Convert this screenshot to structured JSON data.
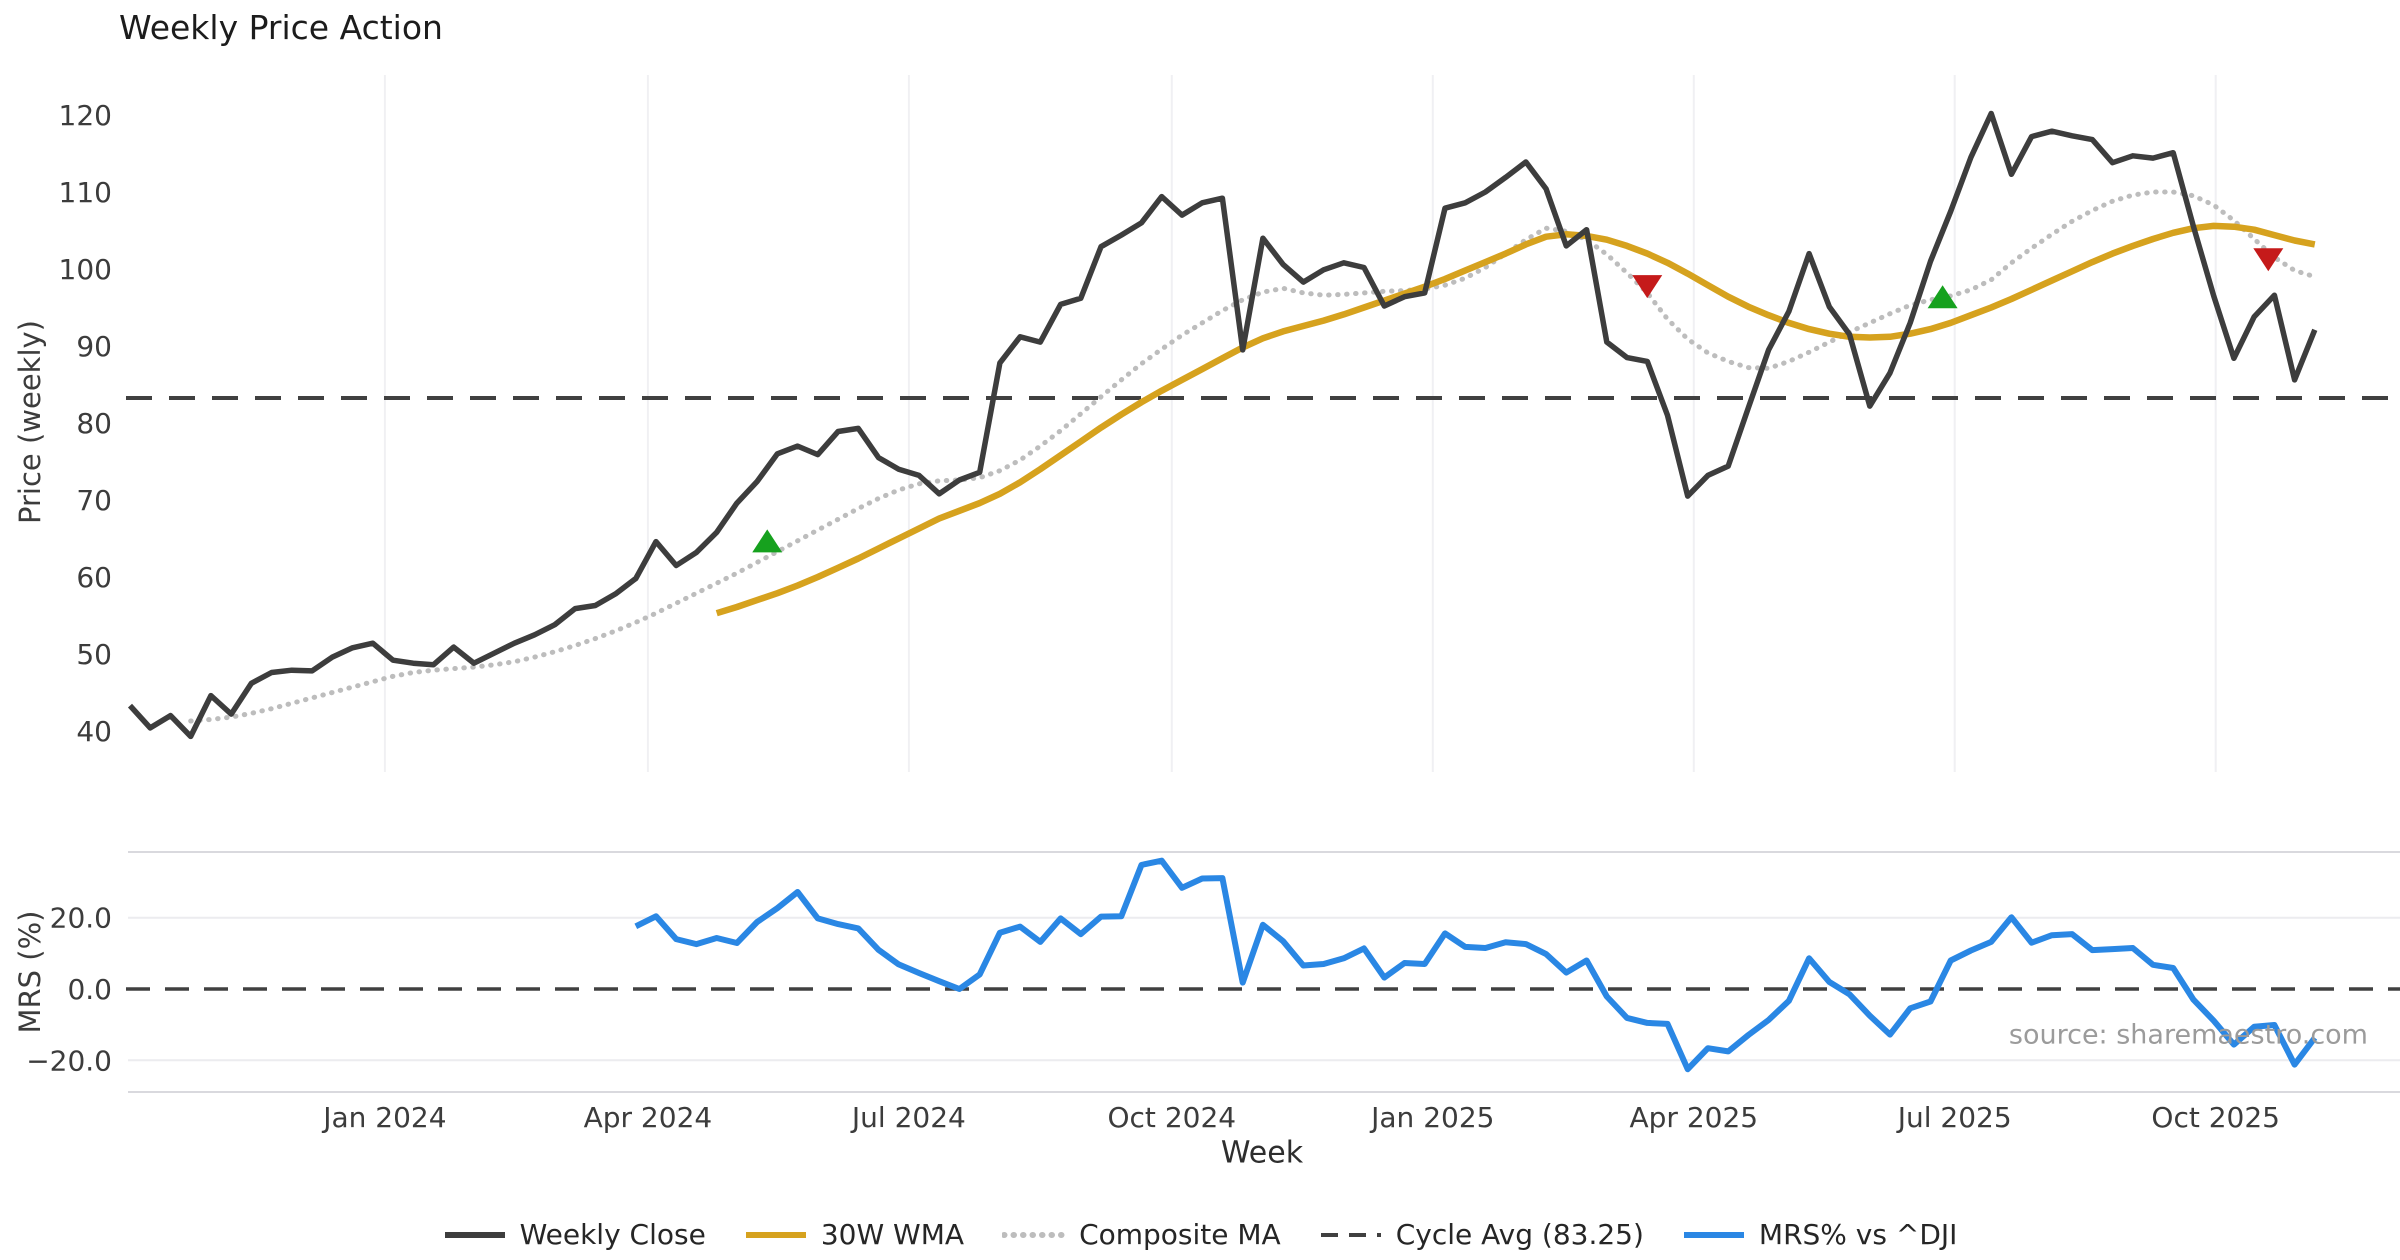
{
  "title": "Weekly Price Action",
  "axes": {
    "price_label": "Price (weekly)",
    "mrs_label": "MRS (%)",
    "x_label": "Week"
  },
  "watermark": "source: sharemaestro.com",
  "colors": {
    "close": "#3d3d3d",
    "wma": "#d6a21e",
    "composite": "#bdbdbd",
    "dashed": "#404040",
    "mrs": "#2a87e4",
    "buy": "#16a11e",
    "sell": "#c51a1a",
    "grid": "#f0f0f3",
    "grid2": "#ececef",
    "spine": "#d9d9de",
    "tick": "#3c3c3c"
  },
  "legend": [
    {
      "label": "Weekly Close",
      "color": "#3d3d3d",
      "style": "solid"
    },
    {
      "label": "30W WMA",
      "color": "#d6a21e",
      "style": "solid"
    },
    {
      "label": "Composite MA",
      "color": "#bdbdbd",
      "style": "dotted"
    },
    {
      "label": "Cycle Avg (83.25)",
      "color": "#404040",
      "style": "dashed"
    },
    {
      "label": "MRS% vs ^DJI",
      "color": "#2a87e4",
      "style": "solid"
    }
  ],
  "chart_data": {
    "type": "line",
    "x_unit": "week_index_from_2023-10",
    "x_ticks": [
      {
        "label": "Jan 2024",
        "week": 12.6
      },
      {
        "label": "Apr 2024",
        "week": 25.6
      },
      {
        "label": "Jul 2024",
        "week": 38.5
      },
      {
        "label": "Oct 2024",
        "week": 51.5
      },
      {
        "label": "Jan 2025",
        "week": 64.4
      },
      {
        "label": "Apr 2025",
        "week": 77.3
      },
      {
        "label": "Jul 2025",
        "week": 90.2
      },
      {
        "label": "Oct 2025",
        "week": 103.1
      }
    ],
    "price_panel": {
      "ylim": [
        34.8,
        125.2
      ],
      "yticks": [
        120,
        110,
        100,
        90,
        80,
        70,
        60,
        50,
        40
      ],
      "cycle_avg": 83.25,
      "series": [
        {
          "name": "Composite MA",
          "style": "dotted",
          "color": "#bdbdbd",
          "width": 5,
          "start_week": 3,
          "values": [
            41.3,
            41.5,
            41.8,
            42.3,
            42.9,
            43.6,
            44.3,
            45.0,
            45.7,
            46.4,
            47.1,
            47.6,
            47.9,
            48.1,
            48.3,
            48.6,
            49.0,
            49.6,
            50.3,
            51.1,
            52.0,
            53.0,
            54.1,
            55.3,
            56.6,
            57.9,
            59.2,
            60.5,
            61.9,
            63.3,
            64.7,
            66.1,
            67.5,
            68.9,
            70.2,
            71.3,
            72.1,
            72.5,
            72.6,
            72.9,
            73.8,
            75.2,
            77.0,
            79.0,
            81.2,
            83.4,
            85.6,
            87.7,
            89.6,
            91.4,
            93.0,
            94.6,
            96.0,
            97.0,
            97.5,
            96.9,
            96.6,
            96.7,
            96.9,
            97.1,
            97.2,
            97.4,
            97.9,
            98.8,
            100.2,
            102.0,
            103.8,
            105.3,
            104.9,
            103.8,
            101.9,
            99.5,
            96.9,
            93.5,
            90.9,
            89.1,
            88.0,
            87.2,
            87.1,
            88.0,
            89.2,
            90.5,
            91.8,
            93.0,
            94.2,
            95.3,
            96.0,
            96.5,
            97.3,
            98.6,
            100.8,
            102.7,
            104.5,
            106.2,
            107.6,
            108.8,
            109.6,
            110.0,
            110.0,
            109.5,
            108.3,
            106.3,
            103.9,
            101.5,
            99.8,
            99.0
          ]
        },
        {
          "name": "30W WMA",
          "style": "solid",
          "color": "#d6a21e",
          "width": 6.5,
          "start_week": 29,
          "values": [
            55.3,
            56.1,
            57.0,
            57.9,
            58.9,
            60.0,
            61.2,
            62.4,
            63.7,
            65.0,
            66.3,
            67.6,
            68.6,
            69.6,
            70.8,
            72.3,
            74.0,
            75.8,
            77.6,
            79.4,
            81.1,
            82.7,
            84.2,
            85.6,
            87.0,
            88.4,
            89.8,
            91.0,
            91.9,
            92.6,
            93.3,
            94.1,
            95.0,
            95.9,
            96.8,
            97.7,
            98.7,
            99.8,
            100.9,
            102.0,
            103.2,
            104.2,
            104.5,
            104.3,
            103.8,
            103.0,
            102.0,
            100.8,
            99.4,
            97.9,
            96.4,
            95.1,
            94.0,
            93.0,
            92.2,
            91.6,
            91.2,
            91.1,
            91.2,
            91.6,
            92.2,
            93.0,
            94.0,
            95.0,
            96.1,
            97.3,
            98.5,
            99.7,
            100.9,
            102.0,
            103.0,
            103.9,
            104.7,
            105.3,
            105.6,
            105.5,
            105.1,
            104.4,
            103.7,
            103.2
          ]
        },
        {
          "name": "Weekly Close",
          "style": "solid",
          "color": "#3d3d3d",
          "width": 5.5,
          "start_week": 0,
          "values": [
            43.3,
            40.4,
            42.0,
            39.3,
            44.6,
            42.2,
            46.2,
            47.6,
            47.9,
            47.8,
            49.6,
            50.8,
            51.4,
            49.2,
            48.8,
            48.6,
            50.9,
            48.8,
            50.1,
            51.4,
            52.5,
            53.8,
            55.9,
            56.3,
            57.8,
            59.8,
            64.6,
            61.5,
            63.2,
            65.8,
            69.6,
            72.4,
            76.0,
            77.0,
            75.9,
            78.9,
            79.3,
            75.5,
            74.0,
            73.2,
            70.8,
            72.6,
            73.6,
            87.8,
            91.2,
            90.5,
            95.4,
            96.2,
            102.9,
            104.4,
            106.0,
            109.4,
            107.0,
            108.6,
            109.2,
            89.5,
            104.0,
            100.6,
            98.3,
            99.9,
            100.8,
            100.2,
            95.2,
            96.4,
            96.9,
            107.9,
            108.6,
            110.0,
            111.9,
            113.9,
            110.4,
            103.0,
            105.1,
            90.5,
            88.5,
            88.0,
            81.0,
            70.5,
            73.2,
            74.4,
            82.0,
            89.5,
            94.5,
            102.0,
            95.1,
            91.5,
            82.2,
            86.5,
            93.0,
            101.0,
            107.5,
            114.5,
            120.2,
            112.3,
            117.2,
            117.9,
            117.3,
            116.8,
            113.8,
            114.7,
            114.4,
            115.1,
            105.5,
            96.5,
            88.4,
            93.8,
            96.6,
            85.6,
            92.1
          ]
        }
      ],
      "markers": [
        {
          "type": "buy",
          "week": 31.5,
          "value": 64.5
        },
        {
          "type": "sell",
          "week": 75.0,
          "value": 97.9
        },
        {
          "type": "buy",
          "week": 89.6,
          "value": 96.2
        },
        {
          "type": "sell",
          "week": 105.7,
          "value": 101.4
        }
      ]
    },
    "mrs_panel": {
      "ylim": [
        -28.9,
        38.4
      ],
      "yticks": [
        {
          "label": "20.0",
          "value": 20
        },
        {
          "label": "0.0",
          "value": 0
        },
        {
          "label": "−20.0",
          "value": -20
        }
      ],
      "zero_line": 0,
      "series": [
        {
          "name": "MRS% vs ^DJI",
          "style": "solid",
          "color": "#2a87e4",
          "width": 6,
          "start_week": 25,
          "values": [
            17.6,
            20.4,
            14.0,
            12.6,
            14.3,
            12.9,
            18.8,
            22.7,
            27.2,
            19.8,
            18.2,
            17.0,
            11.0,
            6.9,
            4.5,
            2.2,
            0.0,
            4.1,
            15.8,
            17.5,
            13.2,
            19.8,
            15.4,
            20.3,
            20.4,
            34.8,
            36.0,
            28.4,
            31.0,
            31.1,
            1.8,
            18.0,
            13.4,
            6.6,
            7.0,
            8.6,
            11.4,
            3.2,
            7.3,
            7.0,
            15.6,
            11.8,
            11.5,
            13.1,
            12.6,
            9.8,
            4.6,
            8.0,
            -2.1,
            -8.1,
            -9.5,
            -9.8,
            -22.5,
            -16.6,
            -17.5,
            -12.9,
            -8.7,
            -3.3,
            8.6,
            2.0,
            -1.5,
            -7.5,
            -12.8,
            -5.4,
            -3.5,
            8.0,
            10.8,
            13.2,
            20.1,
            13.0,
            15.1,
            15.4,
            10.9,
            11.2,
            11.5,
            6.8,
            5.9,
            -3.0,
            -8.9,
            -15.6,
            -10.6,
            -10.1,
            -21.2,
            -13.7
          ]
        }
      ]
    }
  }
}
